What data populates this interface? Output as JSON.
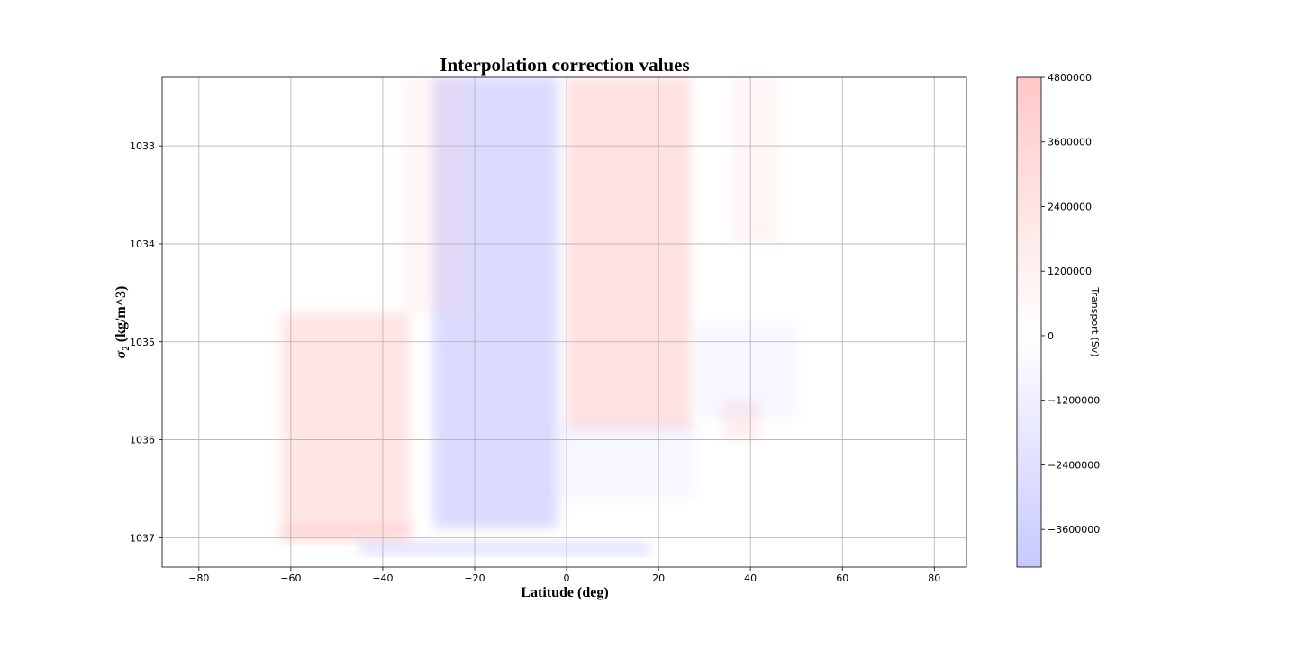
{
  "chart_data": {
    "type": "heatmap",
    "title": "Interpolation correction values",
    "xlabel": "Latitude (deg)",
    "ylabel_main": "σ",
    "ylabel_sub": "2",
    "ylabel_rest": " (kg/m^3)",
    "xlim": [
      -88,
      87
    ],
    "ylim": [
      1037.3,
      1032.3
    ],
    "xticks": [
      -80,
      -60,
      -40,
      -20,
      0,
      20,
      40,
      60,
      80
    ],
    "xtick_labels": [
      "−80",
      "−60",
      "−40",
      "−20",
      "0",
      "20",
      "40",
      "60",
      "80"
    ],
    "yticks": [
      1033,
      1034,
      1035,
      1036,
      1037
    ],
    "ytick_labels": [
      "1033",
      "1034",
      "1035",
      "1036",
      "1037"
    ],
    "grid": true,
    "colormap": "bwr",
    "colors": {
      "negative": "#c8c8ff",
      "zero": "#ffffff",
      "positive": "#ffc8c8"
    },
    "colorbar": {
      "label": "Transport (Sv)",
      "range": [
        -4300000,
        4800000
      ],
      "ticks": [
        4800000,
        3600000,
        2400000,
        1200000,
        0,
        -1200000,
        -2400000,
        -3600000
      ],
      "tick_labels": [
        "4800000",
        "3600000",
        "2400000",
        "1200000",
        "0",
        "−1200000",
        "−2400000",
        "−3600000"
      ]
    },
    "regions": [
      {
        "name": "southern-negative-band",
        "lat_min": -29,
        "lat_max": -2,
        "sigma_min": 1032.3,
        "sigma_max": 1036.9,
        "value": -3300000
      },
      {
        "name": "equatorial-positive-band",
        "lat_min": 0,
        "lat_max": 27,
        "sigma_min": 1032.3,
        "sigma_max": 1035.9,
        "value": 2800000
      },
      {
        "name": "southern-positive-slope",
        "lat_min": -62,
        "lat_max": -34,
        "sigma_min": 1034.7,
        "sigma_max": 1037.0,
        "value": 2400000
      },
      {
        "name": "deep-positive-strip",
        "lat_min": -62,
        "lat_max": -34,
        "sigma_min": 1036.85,
        "sigma_max": 1037.05,
        "value": 2200000
      },
      {
        "name": "bottom-negative-strip",
        "lat_min": -45,
        "lat_max": 18,
        "sigma_min": 1037.04,
        "sigma_max": 1037.18,
        "value": -2600000
      },
      {
        "name": "northern-positive-patch",
        "lat_min": 34,
        "lat_max": 42,
        "sigma_min": 1035.6,
        "sigma_max": 1036.0,
        "value": 1600000
      },
      {
        "name": "upper-faint-positive",
        "lat_min": -36,
        "lat_max": -22,
        "sigma_min": 1032.3,
        "sigma_max": 1034.7,
        "value": 900000
      },
      {
        "name": "northern-faint-positive",
        "lat_min": 36,
        "lat_max": 46,
        "sigma_min": 1032.3,
        "sigma_max": 1034.0,
        "value": 900000
      },
      {
        "name": "northern-faint-negative",
        "lat_min": 28,
        "lat_max": 50,
        "sigma_min": 1034.8,
        "sigma_max": 1035.8,
        "value": -700000
      },
      {
        "name": "mid-faint-negative",
        "lat_min": -2,
        "lat_max": 28,
        "sigma_min": 1035.8,
        "sigma_max": 1036.6,
        "value": -700000
      }
    ]
  }
}
